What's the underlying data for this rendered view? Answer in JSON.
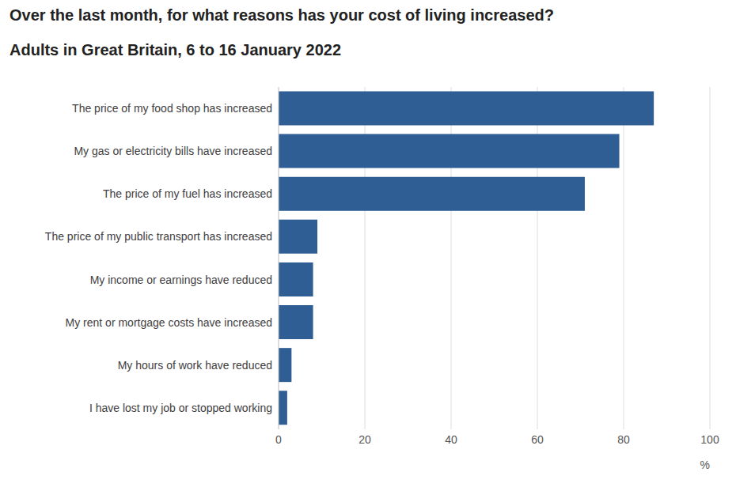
{
  "chart_data": {
    "type": "bar",
    "orientation": "horizontal",
    "title": "Over the last month, for what reasons has your cost of living increased?",
    "subtitle": "Adults in Great Britain, 6 to 16 January 2022",
    "categories": [
      "The price of my food shop has increased",
      "My gas or electricity bills have increased",
      "The price of my fuel has increased",
      "The price of my public transport has increased",
      "My income or earnings have reduced",
      "My rent or mortgage costs have increased",
      "My hours of work have reduced",
      "I have lost my job or stopped working"
    ],
    "values": [
      87,
      79,
      71,
      9,
      8,
      8,
      3,
      2
    ],
    "color": "#2f5e94",
    "xlim": [
      0,
      100
    ],
    "xticks": [
      0,
      20,
      40,
      60,
      80,
      100
    ],
    "x_label": "%",
    "grid": true
  }
}
